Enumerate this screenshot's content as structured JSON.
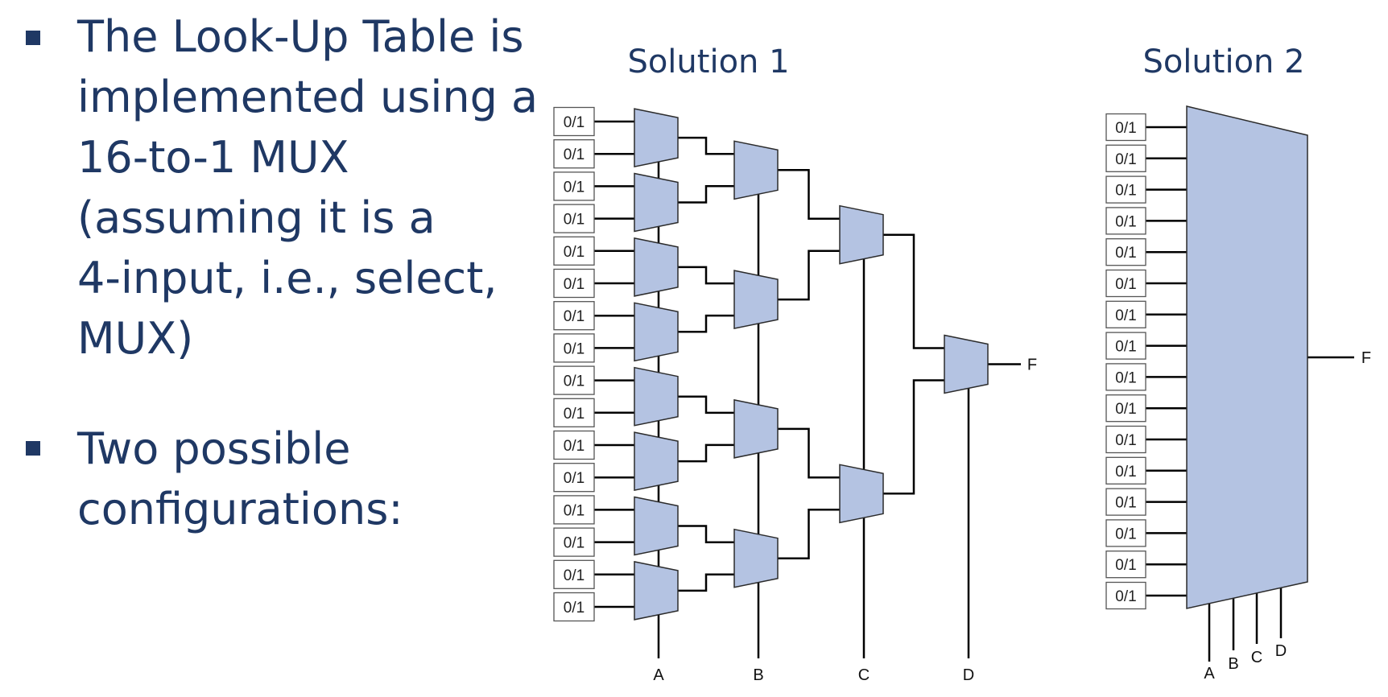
{
  "bullets": [
    {
      "lines": [
        "The Look-Up Table is",
        "implemented using a",
        "16-to-1 MUX",
        "(assuming it is a",
        "4-input, i.e., select,",
        "MUX)"
      ]
    },
    {
      "lines": [
        "Two possible",
        "configurations:"
      ]
    }
  ],
  "solution1": {
    "title": "Solution 1",
    "cell_label": "0/1",
    "select_labels": [
      "A",
      "B",
      "C",
      "D"
    ],
    "output_label": "F"
  },
  "solution2": {
    "title": "Solution 2",
    "cell_label": "0/1",
    "select_labels": [
      "A",
      "B",
      "C",
      "D"
    ],
    "output_label": "F"
  },
  "colors": {
    "mux_fill": "#b4c3e2",
    "text": "#1f3864",
    "wire": "#000000"
  }
}
